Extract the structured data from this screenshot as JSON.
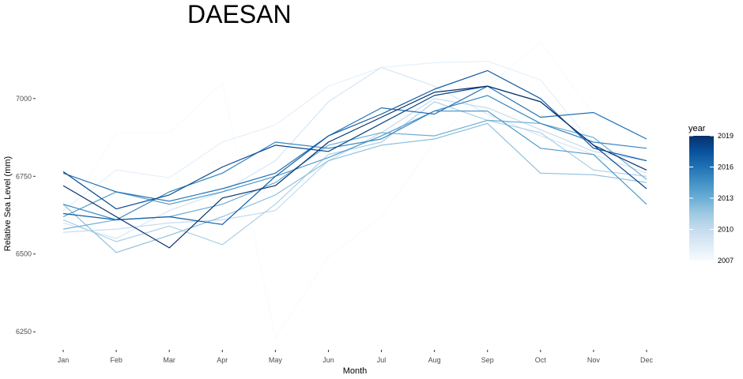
{
  "chart_data": {
    "type": "line",
    "title": "DAESAN",
    "xlabel": "Month",
    "ylabel": "Relative Sea Level (mm)",
    "categories": [
      "Jan",
      "Feb",
      "Mar",
      "Apr",
      "May",
      "Jun",
      "Jul",
      "Aug",
      "Sep",
      "Oct",
      "Nov",
      "Dec"
    ],
    "yticks": [
      6250,
      6500,
      6750,
      7000
    ],
    "ylim": [
      6220,
      7190
    ],
    "grid": false,
    "legend": {
      "title": "year",
      "placement": "right",
      "labels": [
        "2019",
        "2016",
        "2013",
        "2010",
        "2007"
      ],
      "range": [
        2007,
        2019
      ],
      "color_low": "#f7fbff",
      "color_high": "#08306b"
    },
    "series": [
      {
        "year": 2007,
        "values": [
          6610,
          6890,
          6890,
          7050,
          6230,
          6490,
          6620,
          6860,
          7040,
          7180,
          6950,
          6870
        ]
      },
      {
        "year": 2008,
        "values": [
          6640,
          6770,
          6745,
          6860,
          6915,
          7040,
          7100,
          7115,
          7120,
          7060,
          6850,
          6800
        ]
      },
      {
        "year": 2009,
        "values": [
          6600,
          6550,
          6640,
          6700,
          6800,
          6990,
          7100,
          7040,
          6950,
          6880,
          6820,
          6760
        ]
      },
      {
        "year": 2010,
        "values": [
          6570,
          6580,
          6600,
          6610,
          6640,
          6800,
          6890,
          7000,
          6970,
          6900,
          6830,
          6800
        ]
      },
      {
        "year": 2011,
        "values": [
          6610,
          6540,
          6590,
          6530,
          6660,
          6820,
          6860,
          6990,
          6930,
          6890,
          6770,
          6750
        ]
      },
      {
        "year": 2012,
        "values": [
          6660,
          6505,
          6560,
          6620,
          6690,
          6800,
          6850,
          6870,
          6920,
          6760,
          6755,
          6730
        ]
      },
      {
        "year": 2013,
        "values": [
          6580,
          6610,
          6620,
          6660,
          6730,
          6850,
          6890,
          6880,
          6930,
          6920,
          6875,
          6740
        ]
      },
      {
        "year": 2014,
        "values": [
          6620,
          6700,
          6660,
          6700,
          6750,
          6810,
          6880,
          6960,
          6960,
          6840,
          6820,
          6660
        ]
      },
      {
        "year": 2015,
        "values": [
          6660,
          6610,
          6700,
          6760,
          6860,
          6840,
          6870,
          6960,
          7010,
          6920,
          6860,
          6840
        ]
      },
      {
        "year": 2016,
        "values": [
          6760,
          6700,
          6670,
          6710,
          6760,
          6880,
          6970,
          6950,
          7040,
          6940,
          6955,
          6870
        ]
      },
      {
        "year": 2017,
        "values": [
          6630,
          6610,
          6620,
          6595,
          6750,
          6880,
          6950,
          7030,
          7090,
          7000,
          6840,
          6800
        ]
      },
      {
        "year": 2018,
        "values": [
          6765,
          6645,
          6690,
          6780,
          6850,
          6830,
          6920,
          7010,
          7040,
          6990,
          6850,
          6710
        ]
      },
      {
        "year": 2019,
        "values": [
          6720,
          6620,
          6520,
          6680,
          6720,
          6860,
          6940,
          7020,
          7040,
          6990,
          6850,
          6770
        ]
      }
    ]
  }
}
